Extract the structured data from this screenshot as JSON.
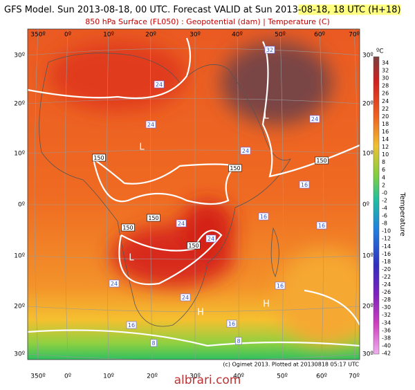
{
  "header": {
    "title": "GFS Model. Sun 2013-08-18, 00 UTC. Forecast VALID at Sun 2013",
    "title_highlight": "-08-18, 18 UTC (H+18)",
    "subtitle": "850 hPa Surface (FL050) : Geopotential (dam) | Temperature (C)"
  },
  "map": {
    "longitude_labels_top": [
      "350º",
      "0º",
      "10º",
      "20º",
      "30º",
      "40º",
      "50º",
      "60º",
      "70º"
    ],
    "longitude_labels_bottom": [
      "350º",
      "0º",
      "10º",
      "20º",
      "30º",
      "40º",
      "50º",
      "60º",
      "70º"
    ],
    "latitude_labels_left": [
      "30º",
      "20º",
      "10º",
      "0º",
      "10º",
      "20º",
      "30º"
    ],
    "latitude_labels_right": [
      "30º",
      "20º",
      "10º",
      "0º",
      "10º",
      "20º",
      "30º"
    ],
    "contour_labels": [
      "32",
      "24",
      "24",
      "L",
      "24",
      "L",
      "150",
      "24",
      "150",
      "150",
      "16",
      "150",
      "24",
      "150",
      "16",
      "16",
      "24",
      "150",
      "L",
      "24",
      "16",
      "24",
      "H",
      "H",
      "16",
      "16",
      "8",
      "8"
    ],
    "credit": "(c) Ogimet 2013. Plotted at 20130818 05:17 UTC"
  },
  "colorbar": {
    "unit": "ºC",
    "title": "Temperature",
    "labels": [
      "34",
      "32",
      "30",
      "28",
      "26",
      "24",
      "22",
      "20",
      "18",
      "16",
      "14",
      "12",
      "10",
      "8",
      "6",
      "4",
      "2",
      "-0",
      "-2",
      "-4",
      "-6",
      "-8",
      "-10",
      "-12",
      "-14",
      "-16",
      "-18",
      "-20",
      "-22",
      "-24",
      "-26",
      "-28",
      "-30",
      "-32",
      "-34",
      "-36",
      "-38",
      "-40",
      "-42"
    ]
  },
  "watermark": "albrari.com"
}
